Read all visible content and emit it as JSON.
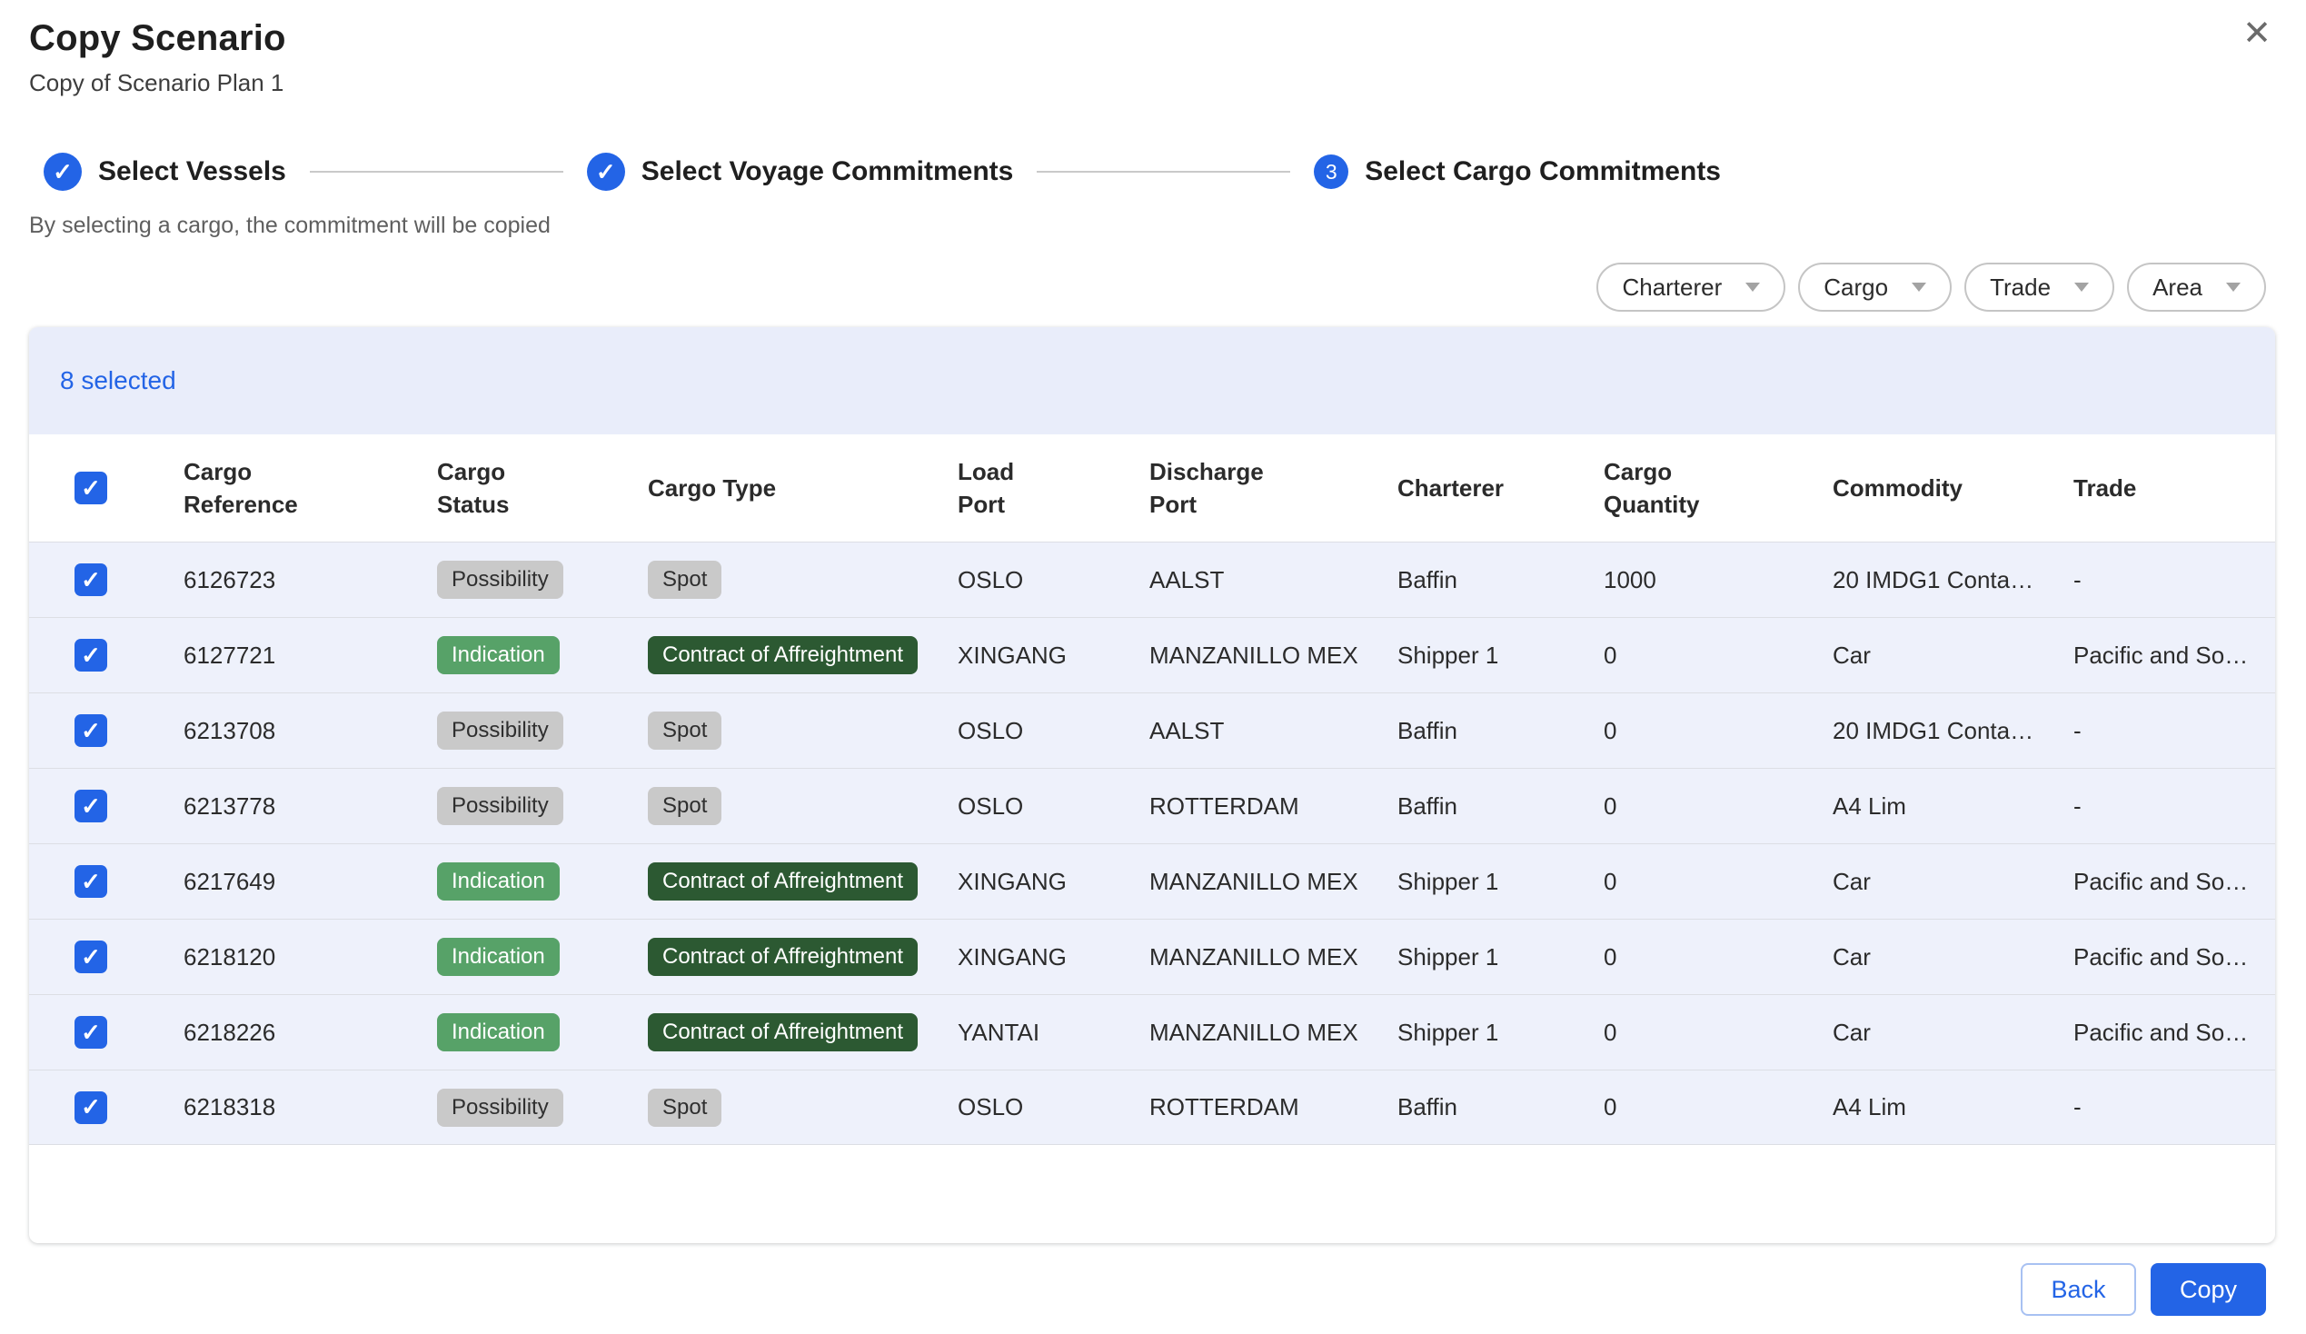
{
  "modal": {
    "title": "Copy Scenario",
    "subtitle": "Copy of Scenario Plan 1",
    "helper_text": "By selecting a cargo, the commitment will be copied"
  },
  "stepper": {
    "steps": [
      {
        "label": "Select Vessels",
        "state": "done",
        "indicator": "✓"
      },
      {
        "label": "Select Voyage Commitments",
        "state": "done",
        "indicator": "✓"
      },
      {
        "label": "Select Cargo Commitments",
        "state": "active",
        "indicator": "3"
      }
    ]
  },
  "filters": {
    "buttons": [
      {
        "label": "Charterer"
      },
      {
        "label": "Cargo"
      },
      {
        "label": "Trade"
      },
      {
        "label": "Area"
      }
    ]
  },
  "selection_banner": {
    "text": "8 selected"
  },
  "table": {
    "columns": [
      {
        "line1": "Cargo",
        "line2": "Reference"
      },
      {
        "line1": "Cargo",
        "line2": "Status"
      },
      {
        "line1": "Cargo Type",
        "line2": ""
      },
      {
        "line1": "Load",
        "line2": "Port"
      },
      {
        "line1": "Discharge",
        "line2": "Port"
      },
      {
        "line1": "Charterer",
        "line2": ""
      },
      {
        "line1": "Cargo",
        "line2": "Quantity"
      },
      {
        "line1": "Commodity",
        "line2": ""
      },
      {
        "line1": "Trade",
        "line2": ""
      }
    ],
    "rows": [
      {
        "selected": true,
        "cargo_reference": "6126723",
        "cargo_status": "Possibility",
        "status_variant": "gray",
        "cargo_type": "Spot",
        "type_variant": "gray",
        "load_port": "OSLO",
        "discharge_port": "AALST",
        "charterer": "Baffin",
        "cargo_quantity": "1000",
        "commodity": "20 IMDG1 Conta…",
        "trade": "-"
      },
      {
        "selected": true,
        "cargo_reference": "6127721",
        "cargo_status": "Indication",
        "status_variant": "green",
        "cargo_type": "Contract of Affreightment",
        "type_variant": "darkgreen",
        "load_port": "XINGANG",
        "discharge_port": "MANZANILLO MEX",
        "charterer": "Shipper 1",
        "cargo_quantity": "0",
        "commodity": "Car",
        "trade": "Pacific and So…"
      },
      {
        "selected": true,
        "cargo_reference": "6213708",
        "cargo_status": "Possibility",
        "status_variant": "gray",
        "cargo_type": "Spot",
        "type_variant": "gray",
        "load_port": "OSLO",
        "discharge_port": "AALST",
        "charterer": "Baffin",
        "cargo_quantity": "0",
        "commodity": "20 IMDG1 Conta…",
        "trade": "-"
      },
      {
        "selected": true,
        "cargo_reference": "6213778",
        "cargo_status": "Possibility",
        "status_variant": "gray",
        "cargo_type": "Spot",
        "type_variant": "gray",
        "load_port": "OSLO",
        "discharge_port": "ROTTERDAM",
        "charterer": "Baffin",
        "cargo_quantity": "0",
        "commodity": "A4 Lim",
        "trade": "-"
      },
      {
        "selected": true,
        "cargo_reference": "6217649",
        "cargo_status": "Indication",
        "status_variant": "green",
        "cargo_type": "Contract of Affreightment",
        "type_variant": "darkgreen",
        "load_port": "XINGANG",
        "discharge_port": "MANZANILLO MEX",
        "charterer": "Shipper 1",
        "cargo_quantity": "0",
        "commodity": "Car",
        "trade": "Pacific and So…"
      },
      {
        "selected": true,
        "cargo_reference": "6218120",
        "cargo_status": "Indication",
        "status_variant": "green",
        "cargo_type": "Contract of Affreightment",
        "type_variant": "darkgreen",
        "load_port": "XINGANG",
        "discharge_port": "MANZANILLO MEX",
        "charterer": "Shipper 1",
        "cargo_quantity": "0",
        "commodity": "Car",
        "trade": "Pacific and So…"
      },
      {
        "selected": true,
        "cargo_reference": "6218226",
        "cargo_status": "Indication",
        "status_variant": "green",
        "cargo_type": "Contract of Affreightment",
        "type_variant": "darkgreen",
        "load_port": "YANTAI",
        "discharge_port": "MANZANILLO MEX",
        "charterer": "Shipper 1",
        "cargo_quantity": "0",
        "commodity": "Car",
        "trade": "Pacific and So…"
      },
      {
        "selected": true,
        "cargo_reference": "6218318",
        "cargo_status": "Possibility",
        "status_variant": "gray",
        "cargo_type": "Spot",
        "type_variant": "gray",
        "load_port": "OSLO",
        "discharge_port": "ROTTERDAM",
        "charterer": "Baffin",
        "cargo_quantity": "0",
        "commodity": "A4 Lim",
        "trade": "-"
      }
    ]
  },
  "footer": {
    "back_label": "Back",
    "copy_label": "Copy"
  },
  "icons": {
    "close": "✕",
    "check": "✓",
    "dropdown_caret": "caret-down"
  },
  "colors": {
    "accent_blue": "#2364e6",
    "banner_bg": "#e9edfa",
    "row_bg": "#eef1fb",
    "chip_gray": "#c9c9c9",
    "chip_green": "#57a268",
    "chip_dark_green": "#2c5932"
  }
}
